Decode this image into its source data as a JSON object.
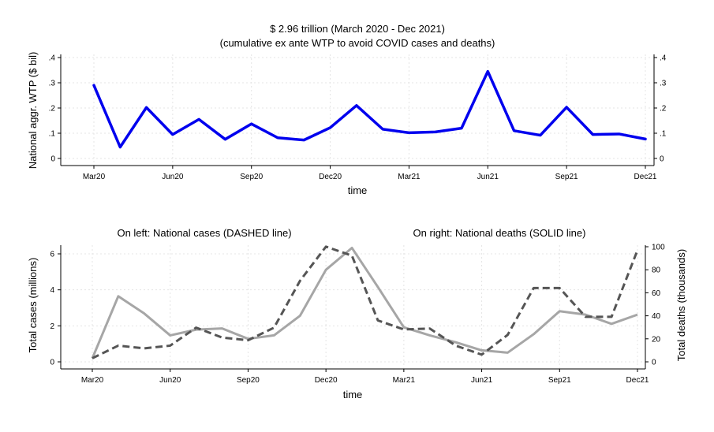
{
  "chart_data": [
    {
      "type": "line",
      "title": "$ 2.96 trillion (March 2020 - Dec 2021)",
      "subtitle": "(cumulative ex ante WTP to avoid COVID cases and deaths)",
      "xlabel": "time",
      "ylabel": "National aggr. WTP ($ bil)",
      "categories": [
        "Mar20",
        "Apr20",
        "May20",
        "Jun20",
        "Jul20",
        "Aug20",
        "Sep20",
        "Oct20",
        "Nov20",
        "Dec20",
        "Jan21",
        "Feb21",
        "Mar21",
        "Apr21",
        "May21",
        "Jun21",
        "Jul21",
        "Aug21",
        "Sep21",
        "Oct21",
        "Nov21",
        "Dec21"
      ],
      "x_ticks": [
        "Mar20",
        "Jun20",
        "Sep20",
        "Dec20",
        "Mar21",
        "Jun21",
        "Sep21",
        "Dec21"
      ],
      "y_ticks_left": [
        "0",
        ".1",
        ".2",
        ".3",
        ".4"
      ],
      "y_ticks_right": [
        "0",
        ".1",
        ".2",
        ".3",
        ".4"
      ],
      "ylim": [
        0,
        0.4
      ],
      "series": [
        {
          "values": [
            0.29,
            0.045,
            0.202,
            0.095,
            0.155,
            0.076,
            0.137,
            0.082,
            0.073,
            0.122,
            0.21,
            0.116,
            0.102,
            0.105,
            0.12,
            0.345,
            0.11,
            0.092,
            0.203,
            0.095,
            0.097,
            0.077
          ],
          "color": "#0000ee",
          "style": "solid"
        }
      ],
      "grid": true
    },
    {
      "type": "line",
      "title_left": "On left: National cases (DASHED line)",
      "title_right": "On right: National deaths (SOLID line)",
      "xlabel": "time",
      "ylabel_left": "Total cases (millions)",
      "ylabel_right": "Total deaths (thousands)",
      "categories": [
        "Mar20",
        "Apr20",
        "May20",
        "Jun20",
        "Jul20",
        "Aug20",
        "Sep20",
        "Oct20",
        "Nov20",
        "Dec20",
        "Jan21",
        "Feb21",
        "Mar21",
        "Apr21",
        "May21",
        "Jun21",
        "Jul21",
        "Aug21",
        "Sep21",
        "Oct21",
        "Nov21",
        "Dec21"
      ],
      "x_ticks": [
        "Mar20",
        "Jun20",
        "Sep20",
        "Dec20",
        "Mar21",
        "Jun21",
        "Sep21",
        "Dec21"
      ],
      "y_ticks_left": [
        "0",
        "2",
        "4",
        "6"
      ],
      "y_ticks_right": [
        "0",
        "20",
        "40",
        "60",
        "80",
        "100"
      ],
      "ylim_left": [
        0,
        6.4
      ],
      "ylim_right": [
        0,
        100
      ],
      "series": [
        {
          "name": "National cases",
          "axis": "left",
          "style": "dashed",
          "color": "#555555",
          "values": [
            0.2,
            0.9,
            0.75,
            0.9,
            1.9,
            1.35,
            1.2,
            1.9,
            4.5,
            6.4,
            5.9,
            2.3,
            1.8,
            1.85,
            0.9,
            0.4,
            1.5,
            4.1,
            4.1,
            2.5,
            2.5,
            6.2
          ]
        },
        {
          "name": "National deaths",
          "axis": "right",
          "style": "solid",
          "color": "#a6a6a6",
          "values": [
            3,
            57,
            42,
            23,
            28,
            29,
            20,
            23,
            40,
            80,
            99,
            65,
            30,
            23,
            17,
            10,
            8,
            24,
            44,
            41,
            33,
            41
          ]
        }
      ],
      "grid": true
    }
  ]
}
